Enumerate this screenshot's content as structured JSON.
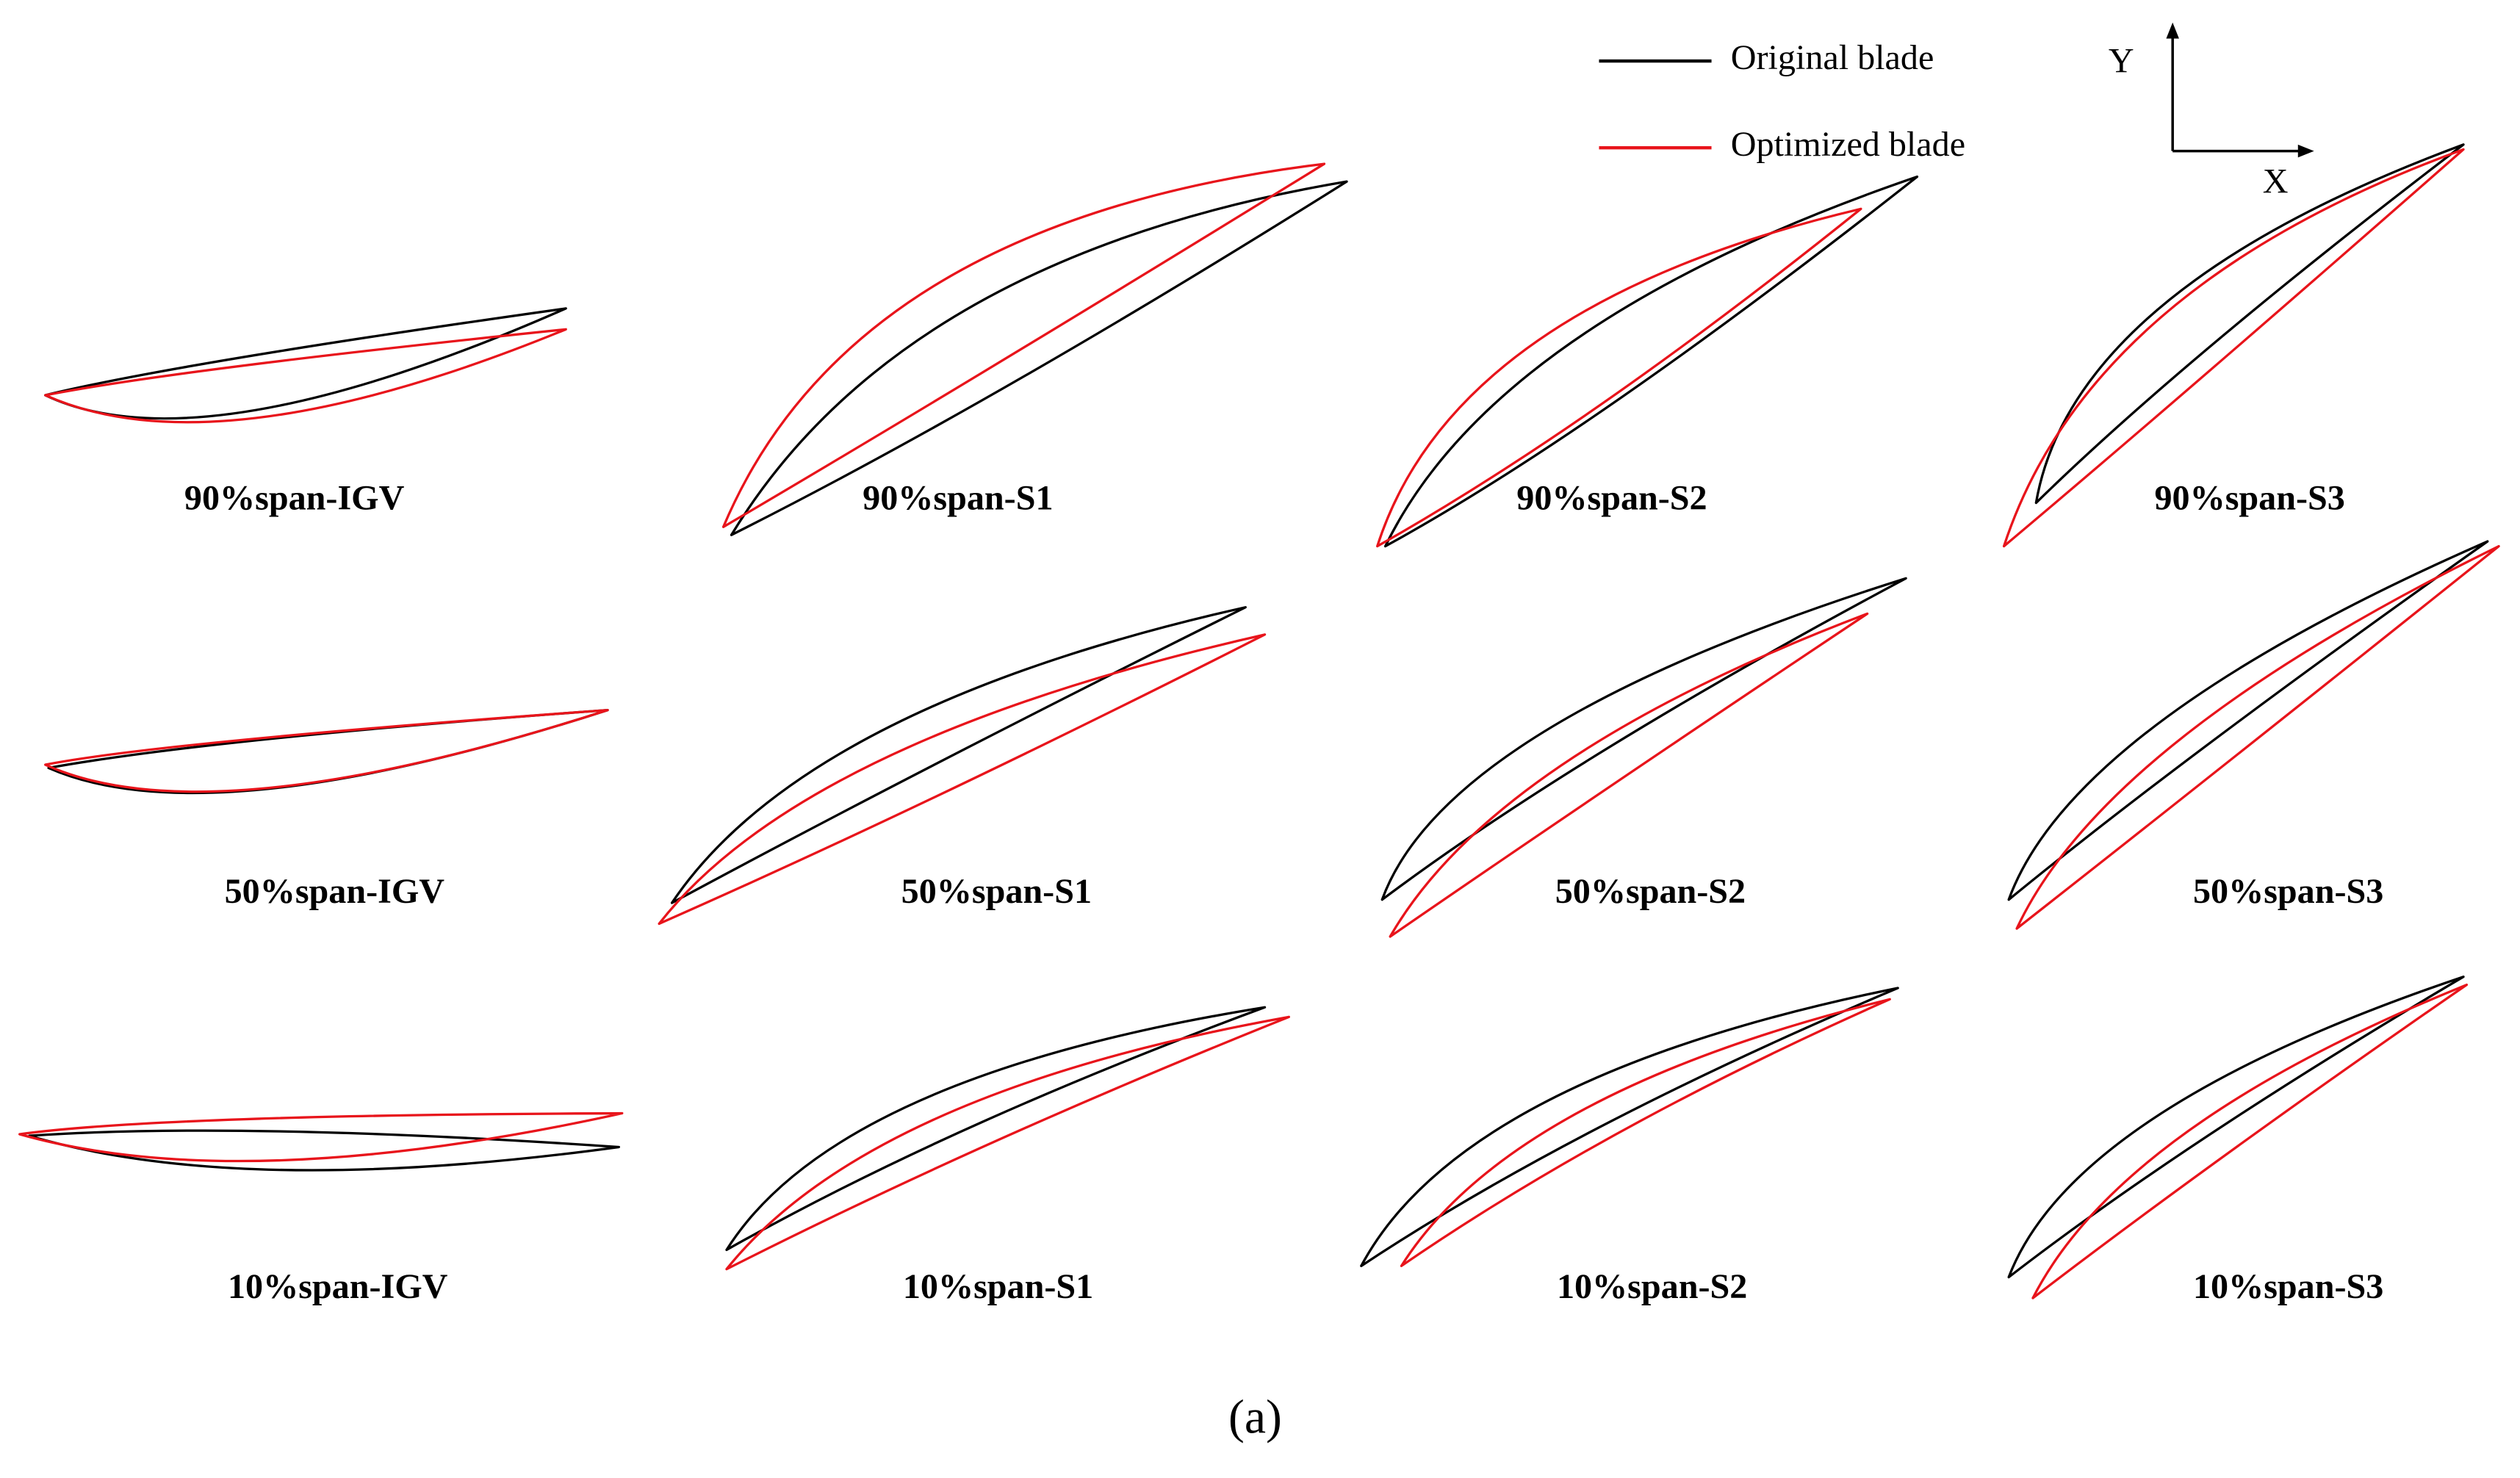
{
  "legend": {
    "items": [
      {
        "label": "Original blade",
        "color": "#000000"
      },
      {
        "label": "Optimized blade",
        "color": "#e8141b"
      }
    ]
  },
  "axes": {
    "y": "Y",
    "x": "X"
  },
  "panels": [
    [
      "90%span-IGV",
      "90%span-S1",
      "90%span-S2",
      "90%span-S3"
    ],
    [
      "50%span-IGV",
      "50%span-S1",
      "50%span-S2",
      "50%span-S3"
    ],
    [
      "10%span-IGV",
      "10%span-S1",
      "10%span-S2",
      "10%span-S3"
    ]
  ],
  "caption": "(a)"
}
